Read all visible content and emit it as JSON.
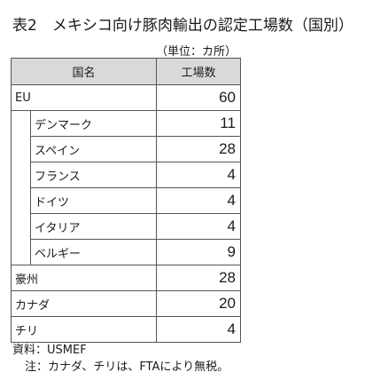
{
  "title": "表2　メキシコ向け豚肉輸出の認定工場数（国別）",
  "unit": "（単位：カ所）",
  "table": {
    "headers": [
      "国名",
      "工場数"
    ],
    "rows": [
      {
        "name": "EU",
        "value": "60"
      },
      {
        "name": "デンマーク",
        "value": "11"
      },
      {
        "name": "スペイン",
        "value": "28"
      },
      {
        "name": "フランス",
        "value": "4"
      },
      {
        "name": "ドイツ",
        "value": "4"
      },
      {
        "name": "イタリア",
        "value": "4"
      },
      {
        "name": "ベルギー",
        "value": "9"
      },
      {
        "name": "豪州",
        "value": "28"
      },
      {
        "name": "カナダ",
        "value": "20"
      },
      {
        "name": "チリ",
        "value": "4"
      }
    ]
  },
  "notes": {
    "source": "資料：USMEF",
    "note": "注：カナダ、チリは、FTAにより無税。"
  }
}
